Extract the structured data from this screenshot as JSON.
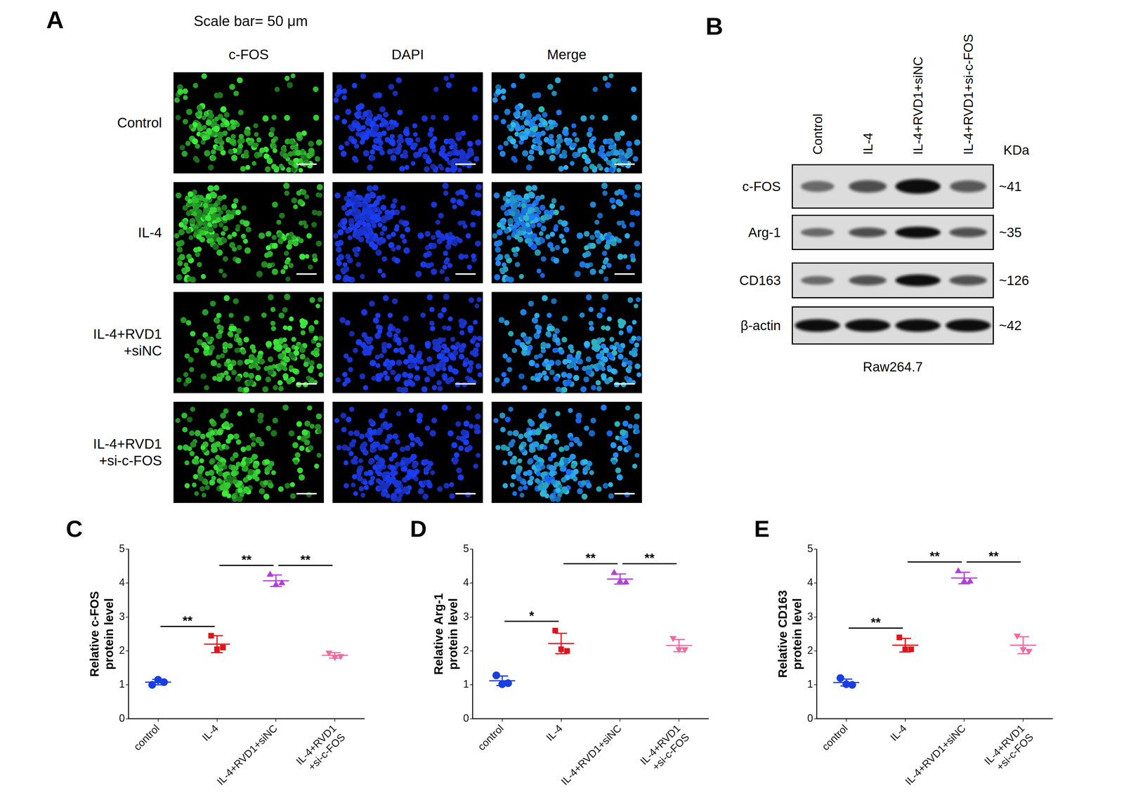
{
  "panel_a": {
    "letter": "A",
    "scale_bar": "Scale bar= 50 μm",
    "columns": [
      "c-FOS",
      "DAPI",
      "Merge"
    ],
    "rows": [
      "Control",
      "IL-4",
      "IL-4+RVD1\n+siNC",
      "IL-4+RVD1\n+si-c-FOS"
    ]
  },
  "panel_b": {
    "letter": "B",
    "lanes": [
      "Control",
      "IL-4",
      "IL-4+RVD1+siNC",
      "IL-4+RVD1+si-c-FOS"
    ],
    "unit": "KDa",
    "rows": [
      {
        "label": "c-FOS",
        "size": "~41",
        "levels": [
          1.08,
          2.2,
          4.07,
          1.87
        ]
      },
      {
        "label": "Arg-1",
        "size": "~35",
        "levels": [
          1.12,
          2.22,
          4.12,
          2.16
        ]
      },
      {
        "label": "CD163",
        "size": "~126",
        "levels": [
          1.07,
          2.17,
          4.15,
          2.17
        ]
      },
      {
        "label": "β-actin",
        "size": "~42",
        "levels": [
          1,
          1,
          1,
          1
        ]
      }
    ],
    "cell_line": "Raw264.7"
  },
  "chart_data": [
    {
      "letter": "C",
      "type": "scatter",
      "categories": [
        "control",
        "IL-4",
        "IL-4+RVD1+siNC",
        "IL-4+RVD1\n+si-c-FOS"
      ],
      "y_label": "Relative c-FOS\nprotein level",
      "ylim": [
        0,
        5
      ],
      "yticks": [
        0,
        1,
        2,
        3,
        4,
        5
      ],
      "grid": false,
      "points": [
        [
          1.0,
          1.15,
          1.08
        ],
        [
          2.45,
          2.05,
          2.1
        ],
        [
          4.25,
          3.95,
          4.0
        ],
        [
          1.95,
          1.82,
          1.85
        ]
      ],
      "means": [
        1.08,
        2.2,
        4.07,
        1.87
      ],
      "errors": [
        0.08,
        0.25,
        0.17,
        0.08
      ],
      "colors": [
        "#1a3ee0",
        "#e0141b",
        "#b23fd9",
        "#f06aa0"
      ],
      "markers": [
        "circle",
        "square",
        "triangle",
        "triangle_down"
      ],
      "significance": [
        {
          "groups": [
            0,
            1
          ],
          "label": "**"
        },
        {
          "groups": [
            1,
            2
          ],
          "label": "**"
        },
        {
          "groups": [
            2,
            3
          ],
          "label": "**"
        }
      ]
    },
    {
      "letter": "D",
      "type": "scatter",
      "categories": [
        "control",
        "IL-4",
        "IL-4+RVD1+siNC",
        "IL-4+RVD1\n+si-c-FOS"
      ],
      "y_label": "Relative Arg-1\nprotein level",
      "ylim": [
        0,
        5
      ],
      "yticks": [
        0,
        1,
        2,
        3,
        4,
        5
      ],
      "grid": false,
      "points": [
        [
          1.28,
          1.02,
          1.05
        ],
        [
          2.6,
          2.05,
          2.0
        ],
        [
          4.3,
          4.05,
          4.02
        ],
        [
          2.38,
          2.05,
          2.05
        ]
      ],
      "means": [
        1.12,
        2.22,
        4.12,
        2.16
      ],
      "errors": [
        0.14,
        0.3,
        0.15,
        0.18
      ],
      "colors": [
        "#1a3ee0",
        "#e0141b",
        "#b23fd9",
        "#f06aa0"
      ],
      "markers": [
        "circle",
        "square",
        "triangle",
        "triangle_down"
      ],
      "significance": [
        {
          "groups": [
            0,
            1
          ],
          "label": "*"
        },
        {
          "groups": [
            1,
            2
          ],
          "label": "**"
        },
        {
          "groups": [
            2,
            3
          ],
          "label": "**"
        }
      ]
    },
    {
      "letter": "E",
      "type": "scatter",
      "categories": [
        "control",
        "IL-4",
        "IL-4+RVD1+siNC",
        "IL-4+RVD1\n+si-c-FOS"
      ],
      "y_label": "Relative CD163\nprotein level",
      "ylim": [
        0,
        5
      ],
      "yticks": [
        0,
        1,
        2,
        3,
        4,
        5
      ],
      "grid": false,
      "points": [
        [
          1.2,
          1.02,
          1.0
        ],
        [
          2.4,
          2.05,
          2.05
        ],
        [
          4.35,
          4.05,
          4.05
        ],
        [
          2.45,
          2.05,
          2.0
        ]
      ],
      "means": [
        1.07,
        2.17,
        4.15,
        2.17
      ],
      "errors": [
        0.1,
        0.2,
        0.17,
        0.25
      ],
      "colors": [
        "#1a3ee0",
        "#e0141b",
        "#b23fd9",
        "#f06aa0"
      ],
      "markers": [
        "circle",
        "square",
        "triangle",
        "triangle_down"
      ],
      "significance": [
        {
          "groups": [
            0,
            1
          ],
          "label": "**"
        },
        {
          "groups": [
            1,
            2
          ],
          "label": "**"
        },
        {
          "groups": [
            2,
            3
          ],
          "label": "**"
        }
      ]
    }
  ]
}
